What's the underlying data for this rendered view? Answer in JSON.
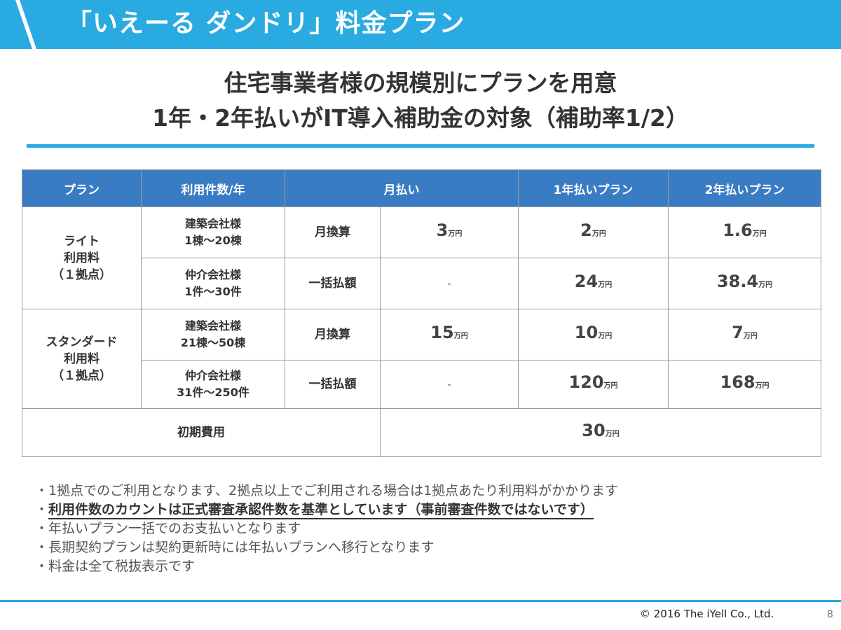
{
  "header": {
    "title": "「いえーる ダンドリ」料金プラン"
  },
  "headline": {
    "line1": "住宅事業者様の規模別にプランを用意",
    "line2": "1年・2年払いがIT導入補助金の対象（補助率1/2）"
  },
  "table": {
    "headers": [
      "プラン",
      "利用件数/年",
      "月払い",
      "1年払いプラン",
      "2年払いプラン"
    ],
    "unit": "万円",
    "dash": "-",
    "row_labels": {
      "monthly": "月換算",
      "lump": "一括払額"
    },
    "plans": [
      {
        "name_lines": [
          "ライト",
          "利用料",
          "（１拠点）"
        ],
        "usage": {
          "a_title": "建築会社様",
          "a_range": "1棟～20棟",
          "b_title": "仲介会社様",
          "b_range": "1件～30件"
        },
        "monthly": [
          "3",
          "2",
          "1.6"
        ],
        "lump": [
          "24",
          "38.4"
        ]
      },
      {
        "name_lines": [
          "スタンダード",
          "利用料",
          "（１拠点）"
        ],
        "usage": {
          "a_title": "建築会社様",
          "a_range": "21棟～50棟",
          "b_title": "仲介会社様",
          "b_range": "31件～250件"
        },
        "monthly": [
          "15",
          "10",
          "7"
        ],
        "lump": [
          "120",
          "168"
        ]
      }
    ],
    "initial": {
      "label": "初期費用",
      "value": "30"
    }
  },
  "notes": [
    "・1拠点でのご利用となります、2拠点以上でご利用される場合は1拠点あたり利用料がかかります",
    "利用件数のカウントは正式審査承認件数を基準としています（事前審査件数ではないです）",
    "・年払いプラン一括でのお支払いとなります",
    "・長期契約プランは契約更新時には年払いプランへ移行となります",
    "・料金は全て税抜表示です"
  ],
  "note_bullet": "・",
  "footer": {
    "copyright": "© 2016 The iYell Co., Ltd.",
    "page": "8"
  },
  "colors": {
    "accent": "#29aae1",
    "table_header": "#3a7cc4"
  }
}
